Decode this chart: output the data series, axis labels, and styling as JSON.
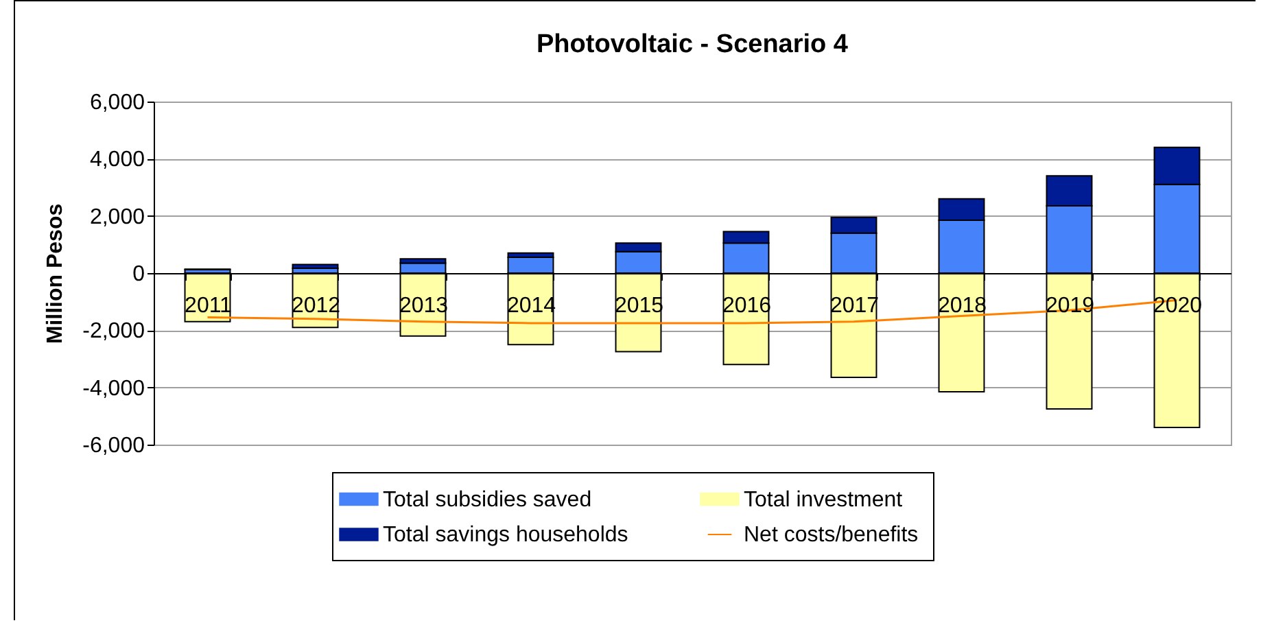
{
  "chart_data": {
    "type": "bar",
    "title": "Photovoltaic - Scenario 4",
    "ylabel": "Million Pesos",
    "categories": [
      "2011",
      "2012",
      "2013",
      "2014",
      "2015",
      "2016",
      "2017",
      "2018",
      "2019",
      "2020"
    ],
    "stacked": true,
    "series": [
      {
        "name": "Total subsidies saved",
        "color": "#4682fa",
        "values": [
          120,
          170,
          350,
          550,
          750,
          1050,
          1400,
          1850,
          2350,
          3100
        ]
      },
      {
        "name": "Total savings households",
        "color": "#001c94",
        "values": [
          20,
          130,
          150,
          150,
          300,
          400,
          550,
          750,
          1050,
          1300
        ]
      },
      {
        "name": "Total investment",
        "color": "#ffffa8",
        "values": [
          -1700,
          -1900,
          -2200,
          -2500,
          -2750,
          -3200,
          -3650,
          -4150,
          -4750,
          -5400
        ]
      },
      {
        "name": "Net costs/benefits",
        "type": "line",
        "color": "#ff8000",
        "values": [
          -1550,
          -1600,
          -1700,
          -1750,
          -1750,
          -1750,
          -1700,
          -1500,
          -1300,
          -950
        ]
      }
    ],
    "ylim": [
      -6000,
      6000
    ],
    "yticks": [
      {
        "value": -6000,
        "label": "-6,000"
      },
      {
        "value": -4000,
        "label": "-4,000"
      },
      {
        "value": -2000,
        "label": "-2,000"
      },
      0,
      {
        "value": 2000,
        "label": "2,000"
      },
      {
        "value": 4000,
        "label": "4,000"
      },
      {
        "value": 6000,
        "label": "6,000"
      }
    ],
    "grid": "y",
    "legend": "bottom"
  }
}
